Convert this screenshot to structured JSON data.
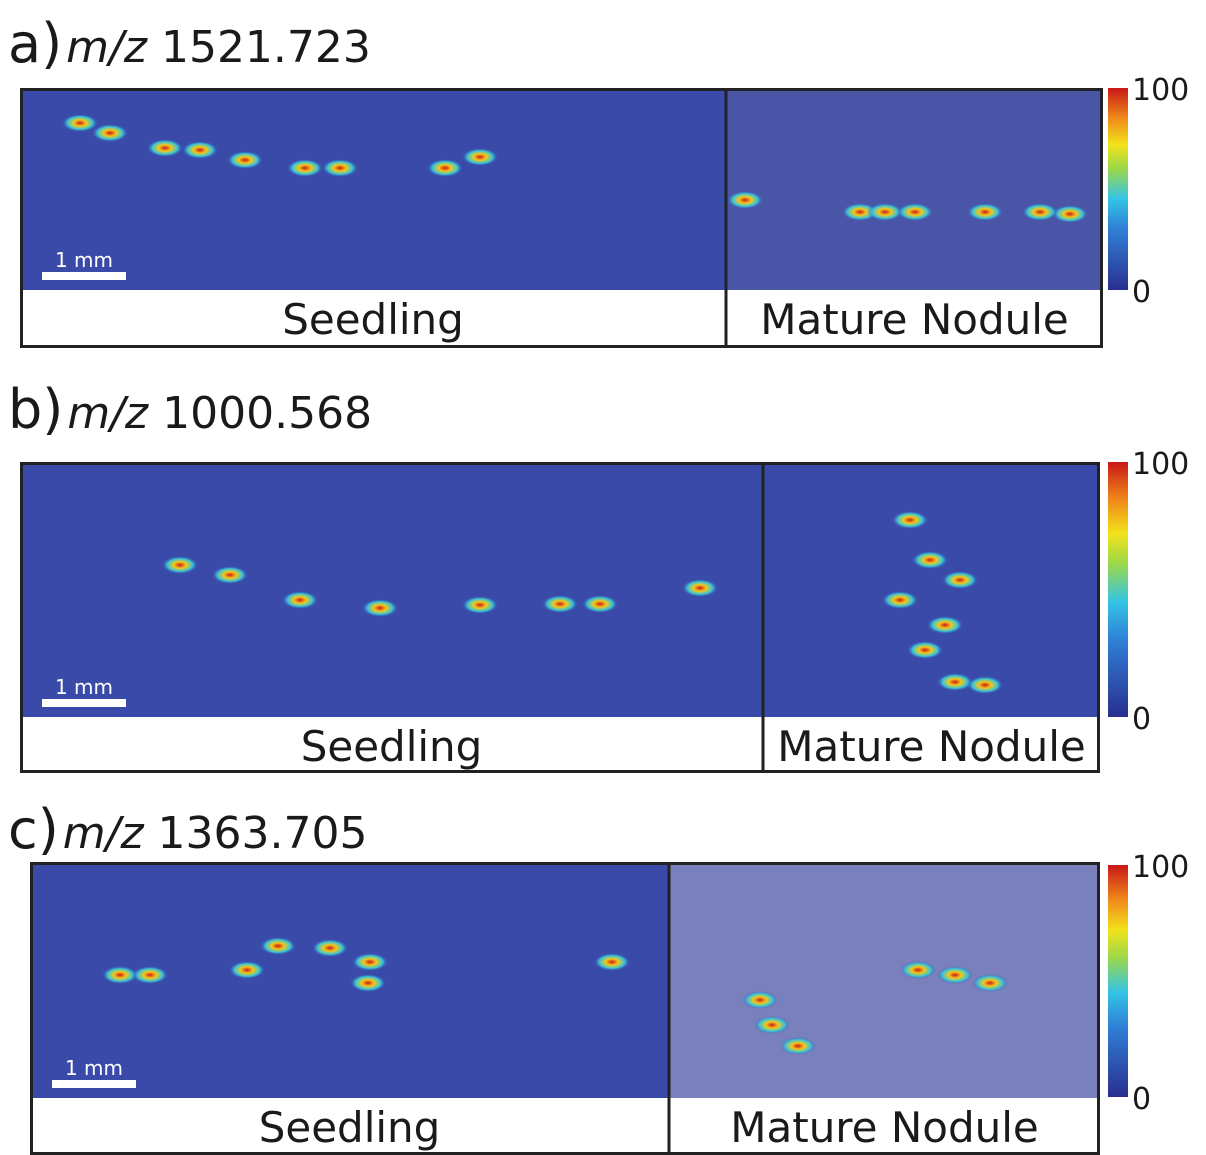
{
  "panels": [
    {
      "label": "a)",
      "mz_prefix": "m/z",
      "mz_value": "1521.723",
      "scale_bar": "1 mm",
      "seedling_label": "Seedling",
      "nodule_label": "Mature Nodule",
      "colorbar_max": "100",
      "colorbar_min": "0"
    },
    {
      "label": "b)",
      "mz_prefix": "m/z",
      "mz_value": "1000.568",
      "scale_bar": "1 mm",
      "seedling_label": "Seedling",
      "nodule_label": "Mature Nodule",
      "colorbar_max": "100",
      "colorbar_min": "0"
    },
    {
      "label": "c)",
      "mz_prefix": "m/z",
      "mz_value": "1363.705",
      "scale_bar": "1 mm",
      "seedling_label": "Seedling",
      "nodule_label": "Mature Nodule",
      "colorbar_max": "100",
      "colorbar_min": "0"
    }
  ]
}
